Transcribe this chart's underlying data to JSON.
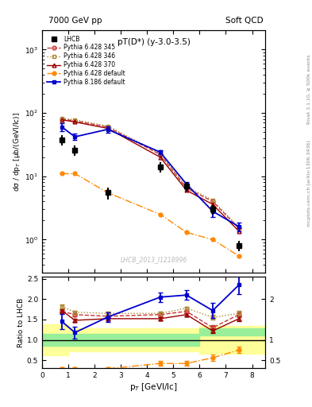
{
  "title_top_left": "7000 GeV pp",
  "title_top_right": "Soft QCD",
  "plot_title": "pT(D*) (y-3.0-3.5)",
  "watermark": "LHCB_2013_I1218996",
  "right_label_top": "Rivet 3.1.10, ≥ 500k events",
  "right_label_bottom": "mcplots.cern.ch [arXiv:1306.3436]",
  "xlabel": "p$_T$ [GeVI/lc]",
  "ylabel_top": "dσ / dp$_T$ [μb/(GeVI/lc)]",
  "ylabel_bottom": "Ratio to LHCB",
  "lhcb_x": [
    0.75,
    1.25,
    2.5,
    4.5,
    5.5,
    6.5,
    7.5
  ],
  "lhcb_y": [
    38,
    26,
    5.5,
    14,
    7.0,
    3.0,
    0.8
  ],
  "lhcb_yerr": [
    7,
    5,
    1.2,
    2.5,
    1.2,
    0.5,
    0.15
  ],
  "py6_345_x": [
    0.75,
    1.25,
    2.5,
    4.5,
    5.5,
    6.5,
    7.5
  ],
  "py6_345_y": [
    80,
    75,
    60,
    22,
    6.5,
    4.0,
    1.5
  ],
  "py6_345_color": "#cc3333",
  "py6_345_label": "Pythia 6.428 345",
  "py6_346_x": [
    0.75,
    1.25,
    2.5,
    4.5,
    5.5,
    6.5,
    7.5
  ],
  "py6_346_y": [
    82,
    78,
    62,
    23,
    6.8,
    4.2,
    1.55
  ],
  "py6_346_color": "#aa8833",
  "py6_346_label": "Pythia 6.428 346",
  "py6_370_x": [
    0.75,
    1.25,
    2.5,
    4.5,
    5.5,
    6.5,
    7.5
  ],
  "py6_370_y": [
    78,
    72,
    57,
    20,
    6.0,
    3.6,
    1.35
  ],
  "py6_370_color": "#990000",
  "py6_370_label": "Pythia 6.428 370",
  "py6_def_x": [
    0.75,
    1.25,
    2.5,
    4.5,
    5.5,
    6.5,
    7.5
  ],
  "py6_def_y": [
    11,
    11,
    5.5,
    2.5,
    1.3,
    1.0,
    0.55
  ],
  "py6_def_color": "#ff8800",
  "py6_def_label": "Pythia 6.428 default",
  "py8_def_x": [
    0.75,
    1.25,
    2.5,
    4.5,
    5.5,
    6.5,
    7.5
  ],
  "py8_def_y": [
    60,
    42,
    55,
    24,
    7.5,
    2.8,
    1.6
  ],
  "py8_def_color": "#0000cc",
  "py8_def_label": "Pythia 8.186 default",
  "py8_def_yerr": [
    8,
    5,
    6,
    2,
    0.7,
    0.5,
    0.25
  ],
  "ratio_x": [
    0.75,
    1.25,
    2.5,
    4.5,
    5.5,
    6.5,
    7.5
  ],
  "ratio_345_y": [
    1.7,
    1.62,
    1.58,
    1.62,
    1.7,
    1.3,
    1.62
  ],
  "ratio_346_y": [
    1.82,
    1.68,
    1.65,
    1.65,
    1.78,
    1.55,
    1.65
  ],
  "ratio_370_y": [
    1.72,
    1.48,
    1.52,
    1.52,
    1.62,
    1.22,
    1.52
  ],
  "ratio_py6def_y": [
    0.29,
    0.29,
    0.29,
    0.42,
    0.42,
    0.56,
    0.75
  ],
  "ratio_py8def_y": [
    1.45,
    1.18,
    1.56,
    2.05,
    2.1,
    1.72,
    2.35
  ],
  "ratio_py8_yerr": [
    0.18,
    0.15,
    0.12,
    0.12,
    0.12,
    0.18,
    0.22
  ],
  "ratio_345_yerr": [
    0.04,
    0.04,
    0.04,
    0.04,
    0.04,
    0.06,
    0.06
  ],
  "ratio_346_yerr": [
    0.04,
    0.04,
    0.04,
    0.04,
    0.04,
    0.06,
    0.06
  ],
  "ratio_370_yerr": [
    0.04,
    0.04,
    0.04,
    0.04,
    0.04,
    0.06,
    0.06
  ],
  "ratio_py6def_yerr": [
    0.04,
    0.04,
    0.04,
    0.06,
    0.06,
    0.08,
    0.08
  ],
  "band_x": [
    0.0,
    1.0,
    1.0,
    6.0,
    6.0,
    8.5
  ],
  "yellow_lo": [
    0.62,
    0.62,
    0.72,
    0.72,
    0.65,
    0.65
  ],
  "yellow_hi": [
    1.38,
    1.38,
    1.28,
    1.28,
    1.35,
    1.35
  ],
  "green_lo": [
    0.85,
    0.85,
    0.85,
    0.85,
    1.1,
    1.1
  ],
  "green_hi": [
    1.15,
    1.15,
    1.15,
    1.15,
    1.28,
    1.28
  ],
  "xlim": [
    0,
    8.5
  ],
  "ylim_top_lo": 0.3,
  "ylim_top_hi": 2000,
  "ylim_bottom_lo": 0.3,
  "ylim_bottom_hi": 2.55,
  "bg_color": "#ffffff"
}
